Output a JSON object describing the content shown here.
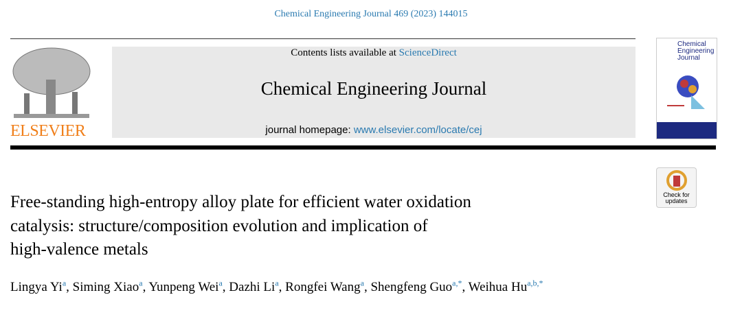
{
  "journal_ref": "Chemical Engineering Journal 469 (2023) 144015",
  "header": {
    "contents_prefix": "Contents lists available at",
    "contents_link": "ScienceDirect",
    "journal_title": "Chemical Engineering Journal",
    "homepage_prefix": "journal homepage:",
    "homepage_url": "www.elsevier.com/locate/cej",
    "publisher": "ELSEVIER",
    "cover_title": [
      "Chemical",
      "Engineering",
      "Journal"
    ]
  },
  "badge": [
    "Check for",
    "updates"
  ],
  "title": [
    "Free-standing high-entropy alloy plate for efficient water oxidation",
    "catalysis: structure/composition evolution and implication of",
    "high-valence metals"
  ],
  "authors": [
    {
      "name": "Lingya Yi",
      "affiliation": "a"
    },
    {
      "name": "Siming Xiao",
      "affiliation": "a"
    },
    {
      "name": "Yunpeng Wei",
      "affiliation": "a"
    },
    {
      "name": "Dazhi Li",
      "affiliation": "a"
    },
    {
      "name": "Rongfei Wang",
      "affiliation": "a"
    },
    {
      "name": "Shengfeng Guo",
      "affiliation": "a,*"
    },
    {
      "name": "Weihua Hu",
      "affiliation": "a,b,*"
    }
  ],
  "separator": ","
}
